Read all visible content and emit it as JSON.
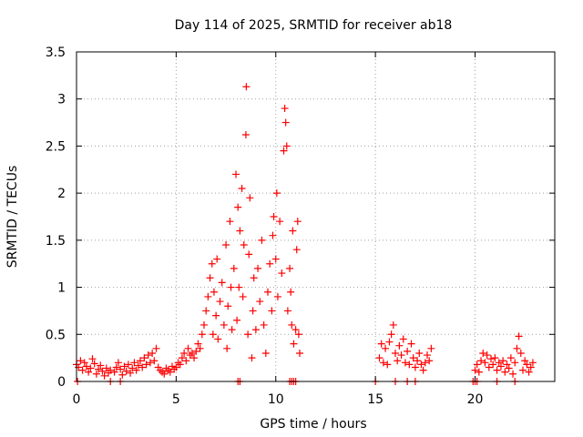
{
  "chart_data": {
    "type": "scatter",
    "title": "Day 114 of 2025, SRMTID for receiver ab18",
    "xlabel": "GPS time / hours",
    "ylabel": "SRMTID / TECUs",
    "xlim": [
      0,
      24
    ],
    "ylim": [
      0,
      3.5
    ],
    "x_ticks": [
      0,
      5,
      10,
      15,
      20
    ],
    "x_tick_labels": [
      "0",
      "5",
      "10",
      "15",
      "20"
    ],
    "y_ticks": [
      0,
      0.5,
      1,
      1.5,
      2,
      2.5,
      3,
      3.5
    ],
    "y_tick_labels": [
      "0",
      "0.5",
      "1",
      "1.5",
      "2",
      "2.5",
      "3",
      "3.5"
    ],
    "grid": true,
    "marker": "+",
    "color": "#ff0000",
    "series": [
      {
        "name": "SRMTID",
        "points": [
          [
            0.0,
            0.18
          ],
          [
            0.1,
            0.15
          ],
          [
            0.2,
            0.22
          ],
          [
            0.3,
            0.12
          ],
          [
            0.4,
            0.2
          ],
          [
            0.5,
            0.16
          ],
          [
            0.6,
            0.1
          ],
          [
            0.7,
            0.14
          ],
          [
            0.8,
            0.24
          ],
          [
            0.9,
            0.19
          ],
          [
            1.0,
            0.08
          ],
          [
            1.1,
            0.13
          ],
          [
            1.2,
            0.17
          ],
          [
            1.3,
            0.11
          ],
          [
            1.4,
            0.06
          ],
          [
            1.5,
            0.14
          ],
          [
            1.6,
            0.09
          ],
          [
            1.7,
            0.12
          ],
          [
            1.9,
            0.1
          ],
          [
            2.0,
            0.15
          ],
          [
            2.1,
            0.2
          ],
          [
            2.2,
            0.13
          ],
          [
            2.3,
            0.07
          ],
          [
            2.4,
            0.16
          ],
          [
            2.5,
            0.11
          ],
          [
            2.6,
            0.18
          ],
          [
            2.7,
            0.09
          ],
          [
            2.8,
            0.14
          ],
          [
            2.9,
            0.2
          ],
          [
            3.0,
            0.12
          ],
          [
            3.1,
            0.17
          ],
          [
            3.2,
            0.22
          ],
          [
            3.3,
            0.15
          ],
          [
            3.4,
            0.25
          ],
          [
            3.5,
            0.18
          ],
          [
            3.6,
            0.28
          ],
          [
            3.7,
            0.2
          ],
          [
            3.8,
            0.3
          ],
          [
            3.9,
            0.22
          ],
          [
            4.0,
            0.35
          ],
          [
            4.1,
            0.15
          ],
          [
            4.2,
            0.12
          ],
          [
            4.3,
            0.1
          ],
          [
            4.4,
            0.08
          ],
          [
            4.5,
            0.14
          ],
          [
            4.6,
            0.12
          ],
          [
            4.7,
            0.1
          ],
          [
            4.8,
            0.16
          ],
          [
            4.9,
            0.13
          ],
          [
            5.0,
            0.15
          ],
          [
            5.1,
            0.2
          ],
          [
            5.2,
            0.18
          ],
          [
            5.3,
            0.25
          ],
          [
            5.4,
            0.3
          ],
          [
            5.5,
            0.22
          ],
          [
            5.6,
            0.35
          ],
          [
            5.7,
            0.28
          ],
          [
            5.8,
            0.3
          ],
          [
            5.9,
            0.25
          ],
          [
            6.0,
            0.32
          ],
          [
            6.1,
            0.4
          ],
          [
            6.2,
            0.35
          ],
          [
            6.3,
            0.5
          ],
          [
            6.4,
            0.6
          ],
          [
            6.5,
            0.75
          ],
          [
            6.6,
            0.9
          ],
          [
            6.7,
            1.1
          ],
          [
            6.8,
            1.25
          ],
          [
            6.85,
            0.5
          ],
          [
            6.9,
            0.95
          ],
          [
            7.0,
            0.7
          ],
          [
            7.05,
            1.3
          ],
          [
            7.1,
            0.45
          ],
          [
            7.2,
            0.85
          ],
          [
            7.3,
            1.05
          ],
          [
            7.4,
            0.6
          ],
          [
            7.5,
            1.45
          ],
          [
            7.55,
            0.35
          ],
          [
            7.6,
            0.8
          ],
          [
            7.7,
            1.7
          ],
          [
            7.75,
            1.0
          ],
          [
            7.8,
            0.55
          ],
          [
            7.9,
            1.2
          ],
          [
            8.0,
            2.2
          ],
          [
            8.05,
            0.65
          ],
          [
            8.1,
            1.85
          ],
          [
            8.15,
            1.0
          ],
          [
            8.2,
            1.6
          ],
          [
            8.3,
            2.05
          ],
          [
            8.35,
            0.9
          ],
          [
            8.4,
            1.45
          ],
          [
            8.5,
            2.62
          ],
          [
            8.52,
            3.13
          ],
          [
            8.6,
            0.5
          ],
          [
            8.65,
            1.35
          ],
          [
            8.7,
            1.95
          ],
          [
            8.8,
            0.25
          ],
          [
            8.85,
            0.75
          ],
          [
            8.9,
            1.1
          ],
          [
            9.0,
            0.55
          ],
          [
            9.1,
            1.2
          ],
          [
            9.2,
            0.85
          ],
          [
            9.3,
            1.5
          ],
          [
            9.4,
            0.6
          ],
          [
            9.5,
            0.3
          ],
          [
            9.6,
            0.95
          ],
          [
            9.7,
            1.25
          ],
          [
            9.8,
            0.75
          ],
          [
            9.85,
            1.55
          ],
          [
            9.9,
            1.75
          ],
          [
            10.0,
            1.3
          ],
          [
            10.05,
            2.0
          ],
          [
            10.1,
            0.9
          ],
          [
            10.2,
            1.7
          ],
          [
            10.3,
            1.15
          ],
          [
            10.4,
            2.45
          ],
          [
            10.45,
            2.9
          ],
          [
            10.5,
            2.75
          ],
          [
            10.55,
            2.5
          ],
          [
            10.6,
            0.75
          ],
          [
            10.7,
            1.2
          ],
          [
            10.75,
            0.95
          ],
          [
            10.8,
            0.6
          ],
          [
            10.85,
            1.6
          ],
          [
            10.9,
            0.4
          ],
          [
            11.0,
            0.55
          ],
          [
            11.05,
            1.4
          ],
          [
            11.1,
            1.7
          ],
          [
            11.15,
            0.5
          ],
          [
            11.2,
            0.3
          ],
          [
            15.2,
            0.25
          ],
          [
            15.3,
            0.4
          ],
          [
            15.4,
            0.2
          ],
          [
            15.5,
            0.35
          ],
          [
            15.6,
            0.18
          ],
          [
            15.7,
            0.42
          ],
          [
            15.8,
            0.5
          ],
          [
            15.9,
            0.6
          ],
          [
            16.0,
            0.3
          ],
          [
            16.1,
            0.22
          ],
          [
            16.2,
            0.38
          ],
          [
            16.3,
            0.28
          ],
          [
            16.4,
            0.45
          ],
          [
            16.5,
            0.2
          ],
          [
            16.6,
            0.32
          ],
          [
            16.7,
            0.18
          ],
          [
            16.8,
            0.4
          ],
          [
            16.9,
            0.25
          ],
          [
            17.0,
            0.15
          ],
          [
            17.1,
            0.22
          ],
          [
            17.2,
            0.3
          ],
          [
            17.3,
            0.18
          ],
          [
            17.4,
            0.12
          ],
          [
            17.5,
            0.2
          ],
          [
            17.6,
            0.28
          ],
          [
            17.7,
            0.22
          ],
          [
            17.8,
            0.35
          ],
          [
            20.0,
            0.12
          ],
          [
            20.1,
            0.18
          ],
          [
            20.2,
            0.1
          ],
          [
            20.3,
            0.22
          ],
          [
            20.4,
            0.3
          ],
          [
            20.5,
            0.2
          ],
          [
            20.6,
            0.28
          ],
          [
            20.7,
            0.15
          ],
          [
            20.8,
            0.24
          ],
          [
            20.9,
            0.18
          ],
          [
            21.0,
            0.25
          ],
          [
            21.1,
            0.12
          ],
          [
            21.2,
            0.2
          ],
          [
            21.3,
            0.16
          ],
          [
            21.4,
            0.22
          ],
          [
            21.5,
            0.1
          ],
          [
            21.6,
            0.18
          ],
          [
            21.7,
            0.14
          ],
          [
            21.8,
            0.25
          ],
          [
            21.9,
            0.08
          ],
          [
            22.0,
            0.2
          ],
          [
            22.1,
            0.35
          ],
          [
            22.2,
            0.48
          ],
          [
            22.3,
            0.3
          ],
          [
            22.4,
            0.12
          ],
          [
            22.5,
            0.22
          ],
          [
            22.6,
            0.18
          ],
          [
            22.7,
            0.1
          ],
          [
            22.8,
            0.15
          ],
          [
            22.9,
            0.2
          ],
          [
            0.05,
            0.0
          ],
          [
            1.7,
            0.0
          ],
          [
            2.2,
            0.0
          ],
          [
            8.1,
            0.0
          ],
          [
            8.2,
            0.0
          ],
          [
            10.7,
            0.0
          ],
          [
            10.8,
            0.0
          ],
          [
            10.9,
            0.0
          ],
          [
            11.0,
            0.0
          ],
          [
            15.0,
            0.0
          ],
          [
            16.0,
            0.0
          ],
          [
            16.6,
            0.0
          ],
          [
            17.0,
            0.0
          ],
          [
            19.9,
            0.0
          ],
          [
            20.0,
            0.0
          ],
          [
            20.1,
            0.0
          ],
          [
            21.1,
            0.0
          ],
          [
            22.0,
            0.0
          ]
        ]
      }
    ]
  }
}
